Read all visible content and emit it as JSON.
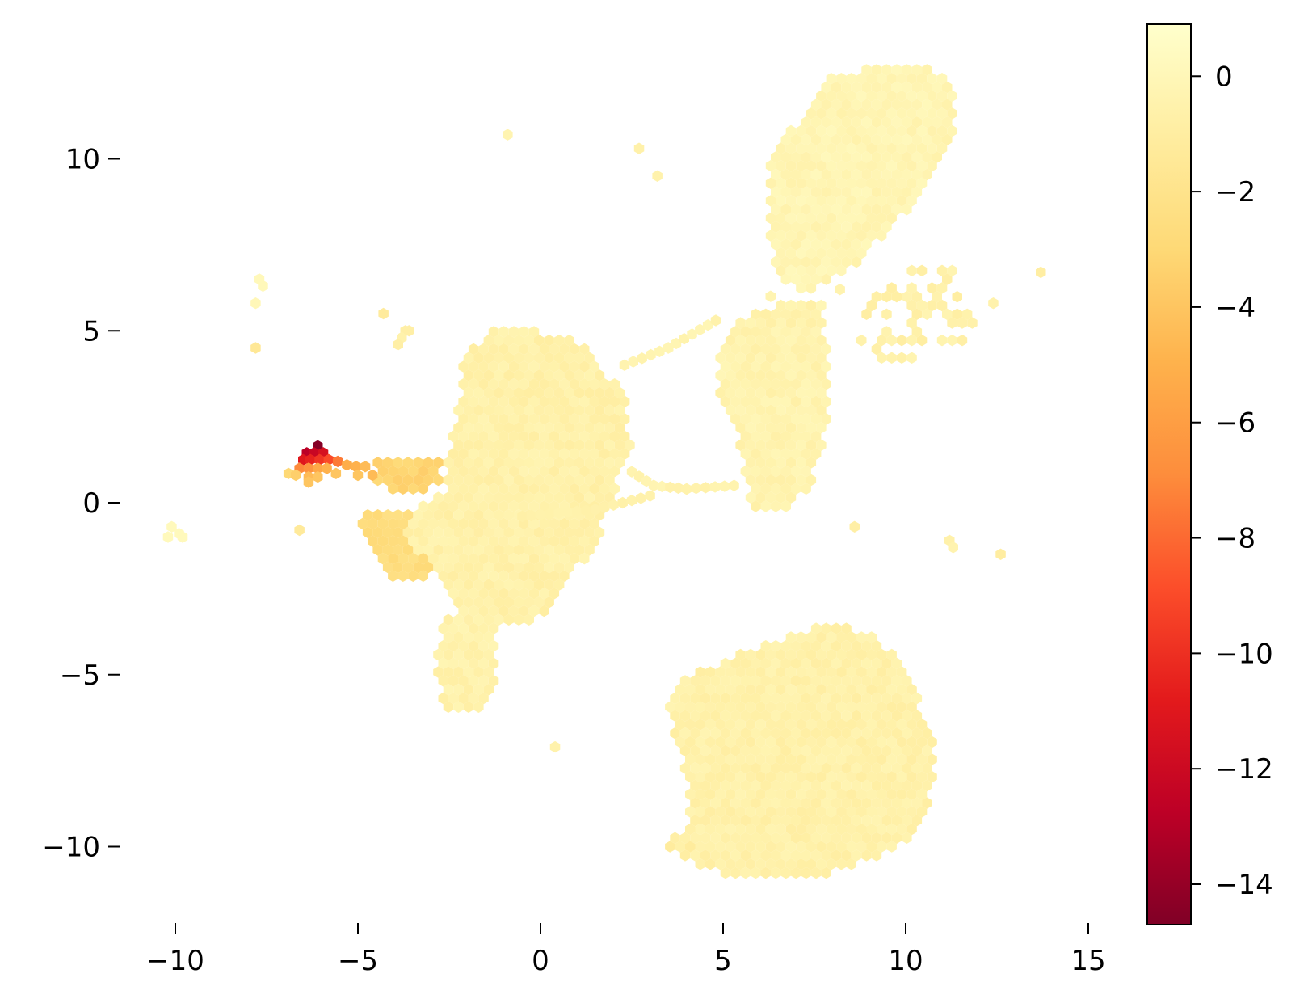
{
  "chart_data": {
    "type": "hexbin",
    "title": "",
    "xlabel": "",
    "ylabel": "",
    "xlim": [
      -12.2,
      16.9
    ],
    "ylim": [
      -12.2,
      13.9
    ],
    "xticks": [
      -10,
      -5,
      0,
      5,
      10,
      15
    ],
    "xtick_labels": [
      "−10",
      "−5",
      "0",
      "5",
      "10",
      "15"
    ],
    "yticks": [
      -10,
      -5,
      0,
      5,
      10
    ],
    "ytick_labels": [
      "−10",
      "−5",
      "0",
      "5",
      "10"
    ],
    "grid": false,
    "frame": false,
    "colormap": "YlOrRd_r",
    "colormap_stops": [
      "#800026",
      "#bd0026",
      "#e31a1c",
      "#fc4e2a",
      "#fd8d3c",
      "#feb24c",
      "#fed976",
      "#ffeda0",
      "#ffffcc"
    ],
    "colorbar": {
      "vmin": -14.7,
      "vmax": 0.9,
      "ticks": [
        0,
        -2,
        -4,
        -6,
        -8,
        -10,
        -12,
        -14
      ],
      "tick_labels": [
        "0",
        "−2",
        "−4",
        "−6",
        "−8",
        "−10",
        "−12",
        "−14"
      ]
    },
    "value_range": [
      -14.5,
      0.4
    ],
    "clusters": [
      {
        "name": "upper-right",
        "polygon": [
          [
            8.0,
            12.4
          ],
          [
            9.5,
            12.8
          ],
          [
            10.5,
            12.8
          ],
          [
            11.2,
            12.3
          ],
          [
            11.4,
            11.0
          ],
          [
            10.8,
            9.8
          ],
          [
            10.3,
            8.8
          ],
          [
            9.6,
            8.0
          ],
          [
            8.7,
            7.0
          ],
          [
            7.2,
            6.0
          ],
          [
            6.5,
            6.5
          ],
          [
            6.2,
            8.2
          ],
          [
            6.3,
            9.8
          ],
          [
            6.7,
            10.8
          ],
          [
            7.4,
            11.4
          ]
        ],
        "value": -0.2
      },
      {
        "name": "right-loop",
        "polygon": [
          [
            9.5,
            6.4
          ],
          [
            10.9,
            7.4
          ],
          [
            11.6,
            6.3
          ],
          [
            11.9,
            5.2
          ],
          [
            11.4,
            4.5
          ],
          [
            10.6,
            4.1
          ],
          [
            9.6,
            3.9
          ],
          [
            8.9,
            4.4
          ],
          [
            8.6,
            5.2
          ]
        ],
        "value": -0.6,
        "density": 0.42
      },
      {
        "name": "middle-column",
        "polygon": [
          [
            5.2,
            5.2
          ],
          [
            6.8,
            5.9
          ],
          [
            7.7,
            5.9
          ],
          [
            7.9,
            3.8
          ],
          [
            7.8,
            2.0
          ],
          [
            7.4,
            0.4
          ],
          [
            6.5,
            -0.3
          ],
          [
            5.8,
            -0.2
          ],
          [
            5.4,
            1.8
          ],
          [
            4.9,
            3.2
          ],
          [
            4.9,
            4.3
          ]
        ],
        "value": -0.4
      },
      {
        "name": "left-central",
        "polygon": [
          [
            -2.1,
            4.3
          ],
          [
            -1.3,
            5.1
          ],
          [
            -0.3,
            5.1
          ],
          [
            1.2,
            4.6
          ],
          [
            2.3,
            3.1
          ],
          [
            2.5,
            1.8
          ],
          [
            2.1,
            0.6
          ],
          [
            1.6,
            -1.0
          ],
          [
            0.8,
            -2.3
          ],
          [
            0.2,
            -3.3
          ],
          [
            -1.0,
            -3.6
          ],
          [
            -2.0,
            -3.3
          ],
          [
            -2.6,
            -2.5
          ],
          [
            -3.2,
            -1.6
          ],
          [
            -3.8,
            -1.0
          ],
          [
            -3.5,
            -0.3
          ],
          [
            -2.6,
            0.4
          ],
          [
            -2.5,
            1.5
          ],
          [
            -2.2,
            3.0
          ]
        ],
        "value": -0.6
      },
      {
        "name": "lower-tail",
        "polygon": [
          [
            -2.7,
            -3.2
          ],
          [
            -1.2,
            -3.1
          ],
          [
            -1.2,
            -5.2
          ],
          [
            -1.6,
            -6.1
          ],
          [
            -2.5,
            -6.1
          ],
          [
            -2.9,
            -5.2
          ]
        ],
        "value": -0.5
      },
      {
        "name": "left-wedge",
        "polygon": [
          [
            -5.0,
            -0.4
          ],
          [
            -4.2,
            -0.1
          ],
          [
            -2.6,
            -0.2
          ],
          [
            -2.2,
            -1.2
          ],
          [
            -2.8,
            -2.0
          ],
          [
            -3.6,
            -2.3
          ],
          [
            -4.3,
            -2.1
          ],
          [
            -4.7,
            -1.2
          ]
        ],
        "value": -2.6
      },
      {
        "name": "lower-right",
        "polygon": [
          [
            3.4,
            -5.6
          ],
          [
            4.0,
            -5.0
          ],
          [
            5.0,
            -4.6
          ],
          [
            6.3,
            -4.1
          ],
          [
            7.7,
            -3.5
          ],
          [
            8.8,
            -3.7
          ],
          [
            9.6,
            -4.3
          ],
          [
            10.3,
            -5.6
          ],
          [
            10.8,
            -7.0
          ],
          [
            10.7,
            -8.8
          ],
          [
            10.1,
            -9.8
          ],
          [
            9.0,
            -10.4
          ],
          [
            7.5,
            -10.9
          ],
          [
            5.5,
            -10.9
          ],
          [
            4.2,
            -10.6
          ],
          [
            4.0,
            -9.4
          ],
          [
            4.0,
            -8.0
          ],
          [
            3.7,
            -7.0
          ]
        ],
        "value": -0.6
      },
      {
        "name": "lower-right-spur",
        "polygon": [
          [
            3.3,
            -10.2
          ],
          [
            4.2,
            -9.0
          ],
          [
            4.6,
            -9.6
          ],
          [
            4.0,
            -10.3
          ]
        ],
        "value": -1.0
      },
      {
        "name": "outlier-bridge",
        "polygon": [
          [
            -4.5,
            1.2
          ],
          [
            -2.7,
            1.3
          ],
          [
            -2.7,
            0.6
          ],
          [
            -3.6,
            0.2
          ],
          [
            -4.5,
            0.6
          ]
        ],
        "value": -3.2
      }
    ],
    "bridges": [
      {
        "points": [
          [
            2.5,
            0.9
          ],
          [
            3.1,
            0.5
          ],
          [
            4.0,
            0.4
          ],
          [
            5.3,
            0.5
          ]
        ],
        "value": -0.4
      },
      {
        "points": [
          [
            2.3,
            4.0
          ],
          [
            3.5,
            4.5
          ],
          [
            4.8,
            5.3
          ]
        ],
        "value": -0.3
      },
      {
        "points": [
          [
            -0.5,
            -0.4
          ],
          [
            1.5,
            -0.2
          ],
          [
            3.0,
            0.2
          ]
        ],
        "value": -0.6
      }
    ],
    "red_cluster": [
      {
        "x": -6.1,
        "y": 1.65,
        "value": -14.5
      },
      {
        "x": -6.4,
        "y": 1.45,
        "value": -12.8
      },
      {
        "x": -6.2,
        "y": 1.45,
        "value": -12.2
      },
      {
        "x": -5.95,
        "y": 1.45,
        "value": -11.5
      },
      {
        "x": -6.5,
        "y": 1.25,
        "value": -11.0
      },
      {
        "x": -6.3,
        "y": 1.25,
        "value": -10.5
      },
      {
        "x": -6.05,
        "y": 1.25,
        "value": -9.8
      },
      {
        "x": -5.8,
        "y": 1.25,
        "value": -9.0
      },
      {
        "x": -5.55,
        "y": 1.2,
        "value": -7.5
      },
      {
        "x": -6.6,
        "y": 1.0,
        "value": -7.0
      },
      {
        "x": -6.35,
        "y": 1.0,
        "value": -6.5
      },
      {
        "x": -6.1,
        "y": 1.0,
        "value": -5.5
      },
      {
        "x": -5.85,
        "y": 1.0,
        "value": -5.0
      },
      {
        "x": -5.3,
        "y": 1.1,
        "value": -5.2
      },
      {
        "x": -5.05,
        "y": 1.05,
        "value": -5.0
      },
      {
        "x": -4.8,
        "y": 1.05,
        "value": -4.5
      },
      {
        "x": -6.9,
        "y": 0.85,
        "value": -3.0
      },
      {
        "x": -6.7,
        "y": 0.8,
        "value": -3.5
      },
      {
        "x": -5.6,
        "y": 0.85,
        "value": -4.0
      },
      {
        "x": -5.0,
        "y": 0.8,
        "value": -4.0
      },
      {
        "x": -4.6,
        "y": 0.8,
        "value": -4.5
      },
      {
        "x": -6.35,
        "y": 0.75,
        "value": -4.5
      },
      {
        "x": -6.1,
        "y": 0.75,
        "value": -4.0
      },
      {
        "x": -6.35,
        "y": 0.6,
        "value": -4.0
      }
    ],
    "scatter": [
      {
        "x": -10.1,
        "y": -0.7,
        "value": 0.2
      },
      {
        "x": -9.9,
        "y": -0.9,
        "value": 0.2
      },
      {
        "x": -10.2,
        "y": -1.0,
        "value": 0.2
      },
      {
        "x": -9.8,
        "y": -1.0,
        "value": 0.2
      },
      {
        "x": -7.7,
        "y": 6.5,
        "value": 0.1
      },
      {
        "x": -7.6,
        "y": 6.3,
        "value": 0.1
      },
      {
        "x": -7.8,
        "y": 5.8,
        "value": 0.0
      },
      {
        "x": -7.8,
        "y": 4.5,
        "value": -1.5
      },
      {
        "x": -4.3,
        "y": 5.5,
        "value": -1.2
      },
      {
        "x": -3.7,
        "y": 5.0,
        "value": -0.8
      },
      {
        "x": -3.8,
        "y": 4.8,
        "value": -0.5
      },
      {
        "x": -3.6,
        "y": 5.0,
        "value": -0.8
      },
      {
        "x": -3.9,
        "y": 4.6,
        "value": -0.8
      },
      {
        "x": -0.9,
        "y": 10.7,
        "value": -0.3
      },
      {
        "x": 2.7,
        "y": 10.3,
        "value": -0.6
      },
      {
        "x": 3.2,
        "y": 9.5,
        "value": -0.5
      },
      {
        "x": 13.7,
        "y": 6.7,
        "value": -0.9
      },
      {
        "x": 12.4,
        "y": 5.8,
        "value": -0.5
      },
      {
        "x": 8.6,
        "y": -0.7,
        "value": -0.8
      },
      {
        "x": 11.2,
        "y": -1.1,
        "value": -0.6
      },
      {
        "x": 11.3,
        "y": -1.3,
        "value": -0.4
      },
      {
        "x": 12.6,
        "y": -1.5,
        "value": -1.0
      },
      {
        "x": 0.4,
        "y": -7.1,
        "value": -0.5
      },
      {
        "x": -6.6,
        "y": -0.8,
        "value": -1.3
      },
      {
        "x": 8.2,
        "y": 6.2,
        "value": -0.4
      },
      {
        "x": 6.3,
        "y": 6.0,
        "value": -0.3
      }
    ]
  }
}
